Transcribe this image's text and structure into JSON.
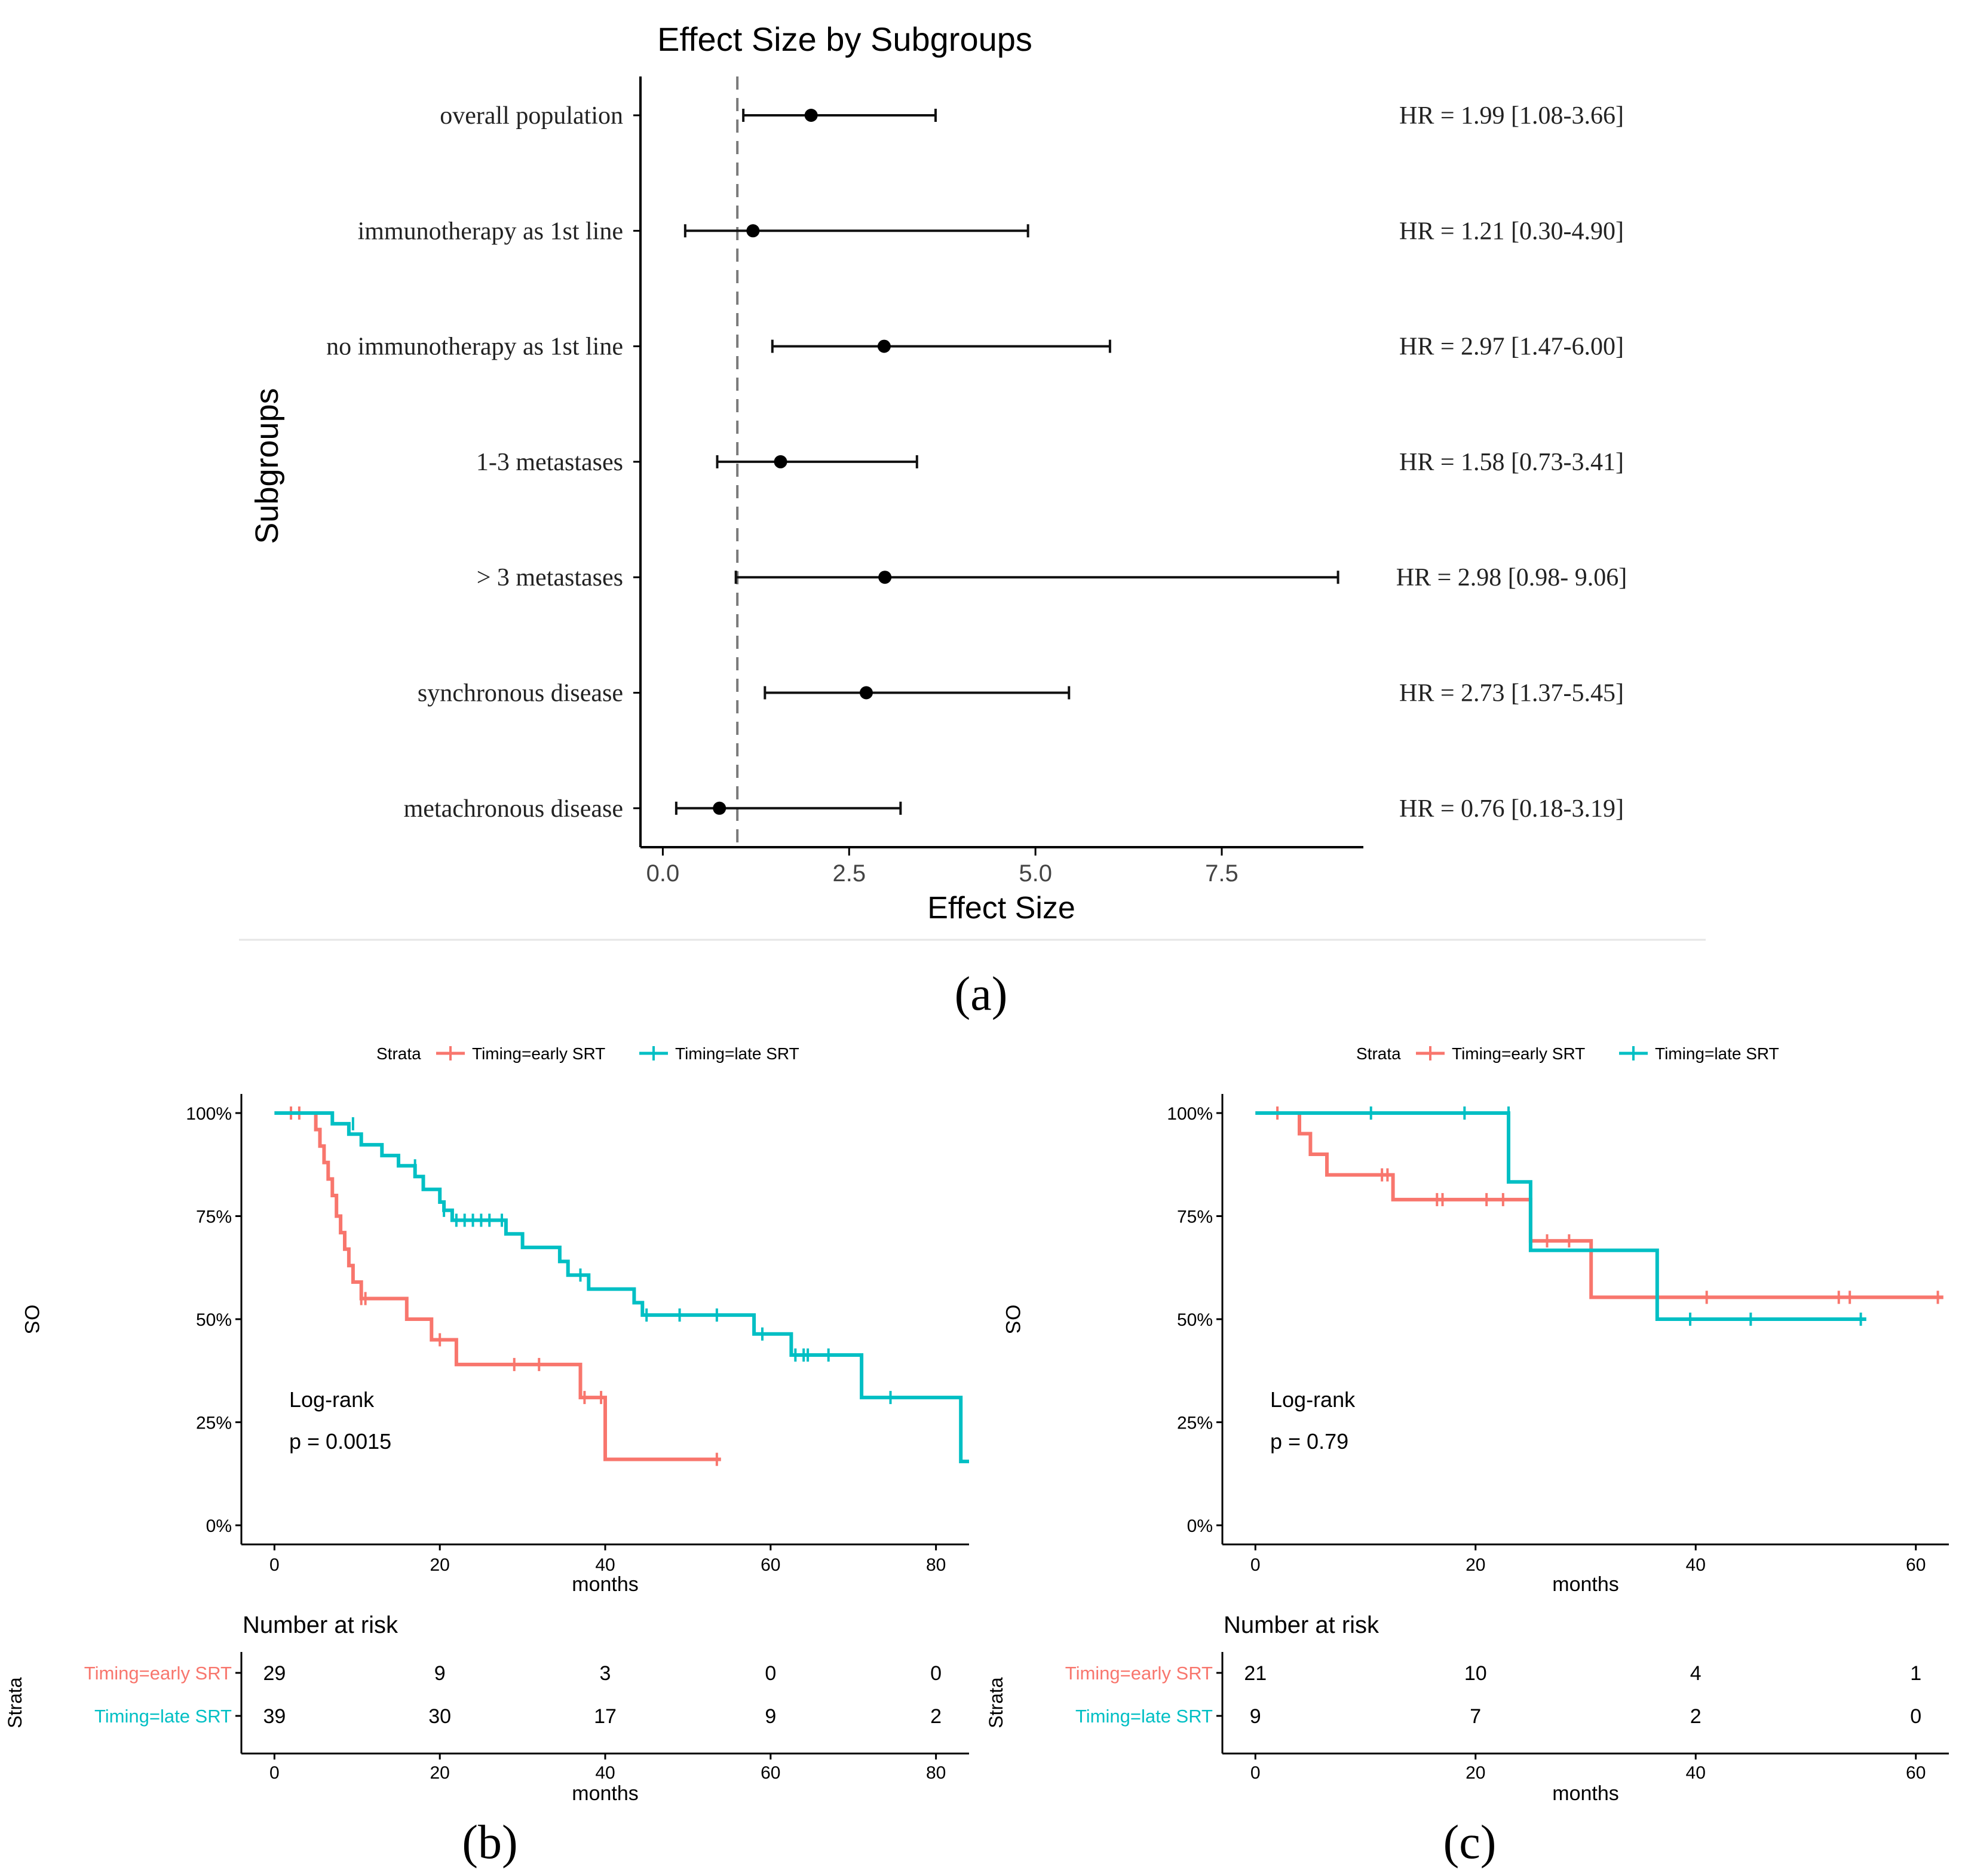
{
  "colors": {
    "early": "#F8766D",
    "late": "#00BFC4",
    "ink": "#000000",
    "divider": "#e6e6e6",
    "ref_line": "#7a7a7a"
  },
  "chart_data": [
    {
      "id": "a",
      "type": "forest",
      "panel_label": "(a)",
      "title": "Effect Size by Subgroups",
      "xlabel": "Effect Size",
      "ylabel": "Subgroups",
      "xlim": [
        -0.3,
        9.4
      ],
      "xticks": [
        0.0,
        2.5,
        5.0,
        7.5
      ],
      "xtick_labels": [
        "0.0",
        "2.5",
        "5.0",
        "7.5"
      ],
      "reference_line": 1.0,
      "rows": [
        {
          "label": "overall population",
          "est": 1.99,
          "lo": 1.08,
          "hi": 3.66,
          "annotation": "HR = 1.99 [1.08-3.66]"
        },
        {
          "label": "immunotherapy as 1st line",
          "est": 1.21,
          "lo": 0.3,
          "hi": 4.9,
          "annotation": "HR = 1.21 [0.30-4.90]"
        },
        {
          "label": "no immunotherapy as 1st line",
          "est": 2.97,
          "lo": 1.47,
          "hi": 6.0,
          "annotation": "HR = 2.97 [1.47-6.00]"
        },
        {
          "label": "1-3 metastases",
          "est": 1.58,
          "lo": 0.73,
          "hi": 3.41,
          "annotation": "HR = 1.58 [0.73-3.41]"
        },
        {
          "label": "> 3 metastases",
          "est": 2.98,
          "lo": 0.98,
          "hi": 9.06,
          "annotation": "HR = 2.98 [0.98- 9.06]"
        },
        {
          "label": "synchronous disease",
          "est": 2.73,
          "lo": 1.37,
          "hi": 5.45,
          "annotation": "HR = 2.73 [1.37-5.45]"
        },
        {
          "label": "metachronous disease",
          "est": 0.76,
          "lo": 0.18,
          "hi": 3.19,
          "annotation": "HR = 0.76 [0.18-3.19]"
        }
      ]
    },
    {
      "id": "b",
      "type": "kaplan-meier",
      "panel_label": "(b)",
      "legend_title": "Strata",
      "legend_position": "top",
      "xlabel": "months",
      "ylabel": "OS",
      "xlim": [
        -4,
        84
      ],
      "xticks": [
        0,
        20,
        40,
        60,
        80
      ],
      "yticks": [
        0,
        0.25,
        0.5,
        0.75,
        1.0
      ],
      "ytick_labels": [
        "0%",
        "25%",
        "50%",
        "75%",
        "100%"
      ],
      "annotation": [
        "Log-rank",
        "p = 0.0015"
      ],
      "series": [
        {
          "name": "Timing=early SRT",
          "color_key": "early",
          "steps": [
            [
              0,
              1.0
            ],
            [
              5,
              1.0
            ],
            [
              5,
              0.96
            ],
            [
              5.5,
              0.96
            ],
            [
              5.5,
              0.92
            ],
            [
              6,
              0.92
            ],
            [
              6,
              0.88
            ],
            [
              6.5,
              0.88
            ],
            [
              6.5,
              0.84
            ],
            [
              7,
              0.84
            ],
            [
              7,
              0.8
            ],
            [
              7.5,
              0.8
            ],
            [
              7.5,
              0.75
            ],
            [
              8,
              0.75
            ],
            [
              8,
              0.71
            ],
            [
              8.5,
              0.71
            ],
            [
              8.5,
              0.67
            ],
            [
              9,
              0.67
            ],
            [
              9,
              0.63
            ],
            [
              9.5,
              0.63
            ],
            [
              9.5,
              0.59
            ],
            [
              10.5,
              0.59
            ],
            [
              10.5,
              0.55
            ],
            [
              16,
              0.55
            ],
            [
              16,
              0.5
            ],
            [
              19,
              0.5
            ],
            [
              19,
              0.45
            ],
            [
              22,
              0.45
            ],
            [
              22,
              0.39
            ],
            [
              37,
              0.39
            ],
            [
              37,
              0.31
            ],
            [
              40,
              0.31
            ],
            [
              40,
              0.16
            ],
            [
              54,
              0.16
            ]
          ],
          "censors": [
            [
              2,
              1.0
            ],
            [
              3,
              1.0
            ],
            [
              10.5,
              0.55
            ],
            [
              11,
              0.55
            ],
            [
              20,
              0.45
            ],
            [
              29,
              0.39
            ],
            [
              32,
              0.39
            ],
            [
              37.5,
              0.31
            ],
            [
              39.5,
              0.31
            ],
            [
              53.5,
              0.16
            ]
          ]
        },
        {
          "name": "Timing=late SRT",
          "color_key": "late",
          "steps": [
            [
              0,
              1.0
            ],
            [
              7,
              1.0
            ],
            [
              7,
              0.974
            ],
            [
              9,
              0.974
            ],
            [
              9,
              0.949
            ],
            [
              10.5,
              0.949
            ],
            [
              10.5,
              0.923
            ],
            [
              13,
              0.923
            ],
            [
              13,
              0.897
            ],
            [
              15,
              0.897
            ],
            [
              15,
              0.872
            ],
            [
              17,
              0.872
            ],
            [
              17,
              0.846
            ],
            [
              18,
              0.846
            ],
            [
              18,
              0.815
            ],
            [
              20,
              0.815
            ],
            [
              20,
              0.784
            ],
            [
              20.5,
              0.784
            ],
            [
              20.5,
              0.764
            ],
            [
              21.5,
              0.764
            ],
            [
              21.5,
              0.74
            ],
            [
              28,
              0.74
            ],
            [
              28,
              0.707
            ],
            [
              30,
              0.707
            ],
            [
              30,
              0.674
            ],
            [
              34.5,
              0.674
            ],
            [
              34.5,
              0.64
            ],
            [
              35.5,
              0.64
            ],
            [
              35.5,
              0.607
            ],
            [
              38,
              0.607
            ],
            [
              38,
              0.573
            ],
            [
              43.5,
              0.573
            ],
            [
              43.5,
              0.54
            ],
            [
              44.5,
              0.54
            ],
            [
              44.5,
              0.51
            ],
            [
              58,
              0.51
            ],
            [
              58,
              0.464
            ],
            [
              62.5,
              0.464
            ],
            [
              62.5,
              0.413
            ],
            [
              71,
              0.413
            ],
            [
              71,
              0.31
            ],
            [
              83,
              0.31
            ],
            [
              83,
              0.155
            ],
            [
              84,
              0.155
            ]
          ],
          "censors": [
            [
              9.5,
              0.974
            ],
            [
              17,
              0.872
            ],
            [
              20.5,
              0.764
            ],
            [
              22,
              0.74
            ],
            [
              23,
              0.74
            ],
            [
              24,
              0.74
            ],
            [
              25,
              0.74
            ],
            [
              26,
              0.74
            ],
            [
              27.5,
              0.74
            ],
            [
              37,
              0.607
            ],
            [
              45,
              0.51
            ],
            [
              49,
              0.51
            ],
            [
              53.5,
              0.51
            ],
            [
              59,
              0.464
            ],
            [
              63,
              0.413
            ],
            [
              64,
              0.413
            ],
            [
              64.5,
              0.413
            ],
            [
              67,
              0.413
            ],
            [
              74.5,
              0.31
            ]
          ]
        }
      ],
      "risk_table": {
        "title": "Number at risk",
        "ylabel": "Strata",
        "xlabel": "months",
        "times": [
          0,
          20,
          40,
          60,
          80
        ],
        "rows": [
          {
            "name": "Timing=early SRT",
            "color_key": "early",
            "values": [
              "29",
              "9",
              "3",
              "0",
              "0"
            ]
          },
          {
            "name": "Timing=late SRT",
            "color_key": "late",
            "values": [
              "39",
              "30",
              "17",
              "9",
              "2"
            ]
          }
        ]
      }
    },
    {
      "id": "c",
      "type": "kaplan-meier",
      "panel_label": "(c)",
      "legend_title": "Strata",
      "legend_position": "top",
      "xlabel": "months",
      "ylabel": "OS",
      "xlim": [
        -3,
        63
      ],
      "xticks": [
        0,
        20,
        40,
        60
      ],
      "yticks": [
        0,
        0.25,
        0.5,
        0.75,
        1.0
      ],
      "ytick_labels": [
        "0%",
        "25%",
        "50%",
        "75%",
        "100%"
      ],
      "annotation": [
        "Log-rank",
        "p = 0.79"
      ],
      "series": [
        {
          "name": "Timing=early SRT",
          "color_key": "early",
          "steps": [
            [
              0,
              1.0
            ],
            [
              4,
              1.0
            ],
            [
              4,
              0.95
            ],
            [
              5,
              0.95
            ],
            [
              5,
              0.9
            ],
            [
              6.5,
              0.9
            ],
            [
              6.5,
              0.85
            ],
            [
              12.5,
              0.85
            ],
            [
              12.5,
              0.79
            ],
            [
              25,
              0.79
            ],
            [
              25,
              0.69
            ],
            [
              30.5,
              0.69
            ],
            [
              30.5,
              0.553
            ],
            [
              62.5,
              0.553
            ]
          ],
          "censors": [
            [
              2,
              1.0
            ],
            [
              11.5,
              0.85
            ],
            [
              12,
              0.85
            ],
            [
              16.5,
              0.79
            ],
            [
              17,
              0.79
            ],
            [
              21,
              0.79
            ],
            [
              22.5,
              0.79
            ],
            [
              26.5,
              0.69
            ],
            [
              28.5,
              0.69
            ],
            [
              41,
              0.553
            ],
            [
              53,
              0.553
            ],
            [
              54,
              0.553
            ],
            [
              62,
              0.553
            ]
          ]
        },
        {
          "name": "Timing=late SRT",
          "color_key": "late",
          "steps": [
            [
              0,
              1.0
            ],
            [
              23,
              1.0
            ],
            [
              23,
              0.833
            ],
            [
              25,
              0.833
            ],
            [
              25,
              0.667
            ],
            [
              36.5,
              0.667
            ],
            [
              36.5,
              0.5
            ],
            [
              55.5,
              0.5
            ]
          ],
          "censors": [
            [
              10.5,
              1.0
            ],
            [
              19,
              1.0
            ],
            [
              23,
              1.0
            ],
            [
              39.5,
              0.5
            ],
            [
              45,
              0.5
            ],
            [
              55,
              0.5
            ]
          ]
        }
      ],
      "risk_table": {
        "title": "Number at risk",
        "ylabel": "Strata",
        "xlabel": "months",
        "times": [
          0,
          20,
          40,
          60
        ],
        "rows": [
          {
            "name": "Timing=early SRT",
            "color_key": "early",
            "values": [
              "21",
              "10",
              "4",
              "1"
            ]
          },
          {
            "name": "Timing=late SRT",
            "color_key": "late",
            "values": [
              "9",
              "7",
              "2",
              "0"
            ]
          }
        ]
      }
    }
  ]
}
